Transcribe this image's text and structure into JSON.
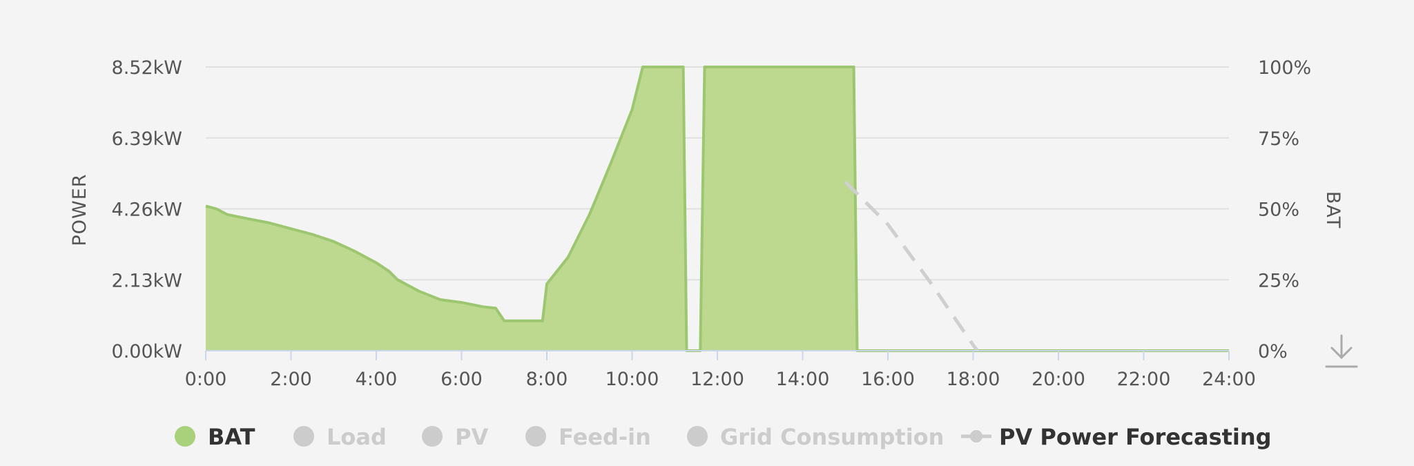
{
  "chart_data": {
    "type": "area",
    "x_ticks": [
      "0:00",
      "2:00",
      "4:00",
      "6:00",
      "8:00",
      "10:00",
      "12:00",
      "14:00",
      "16:00",
      "18:00",
      "20:00",
      "22:00",
      "24:00"
    ],
    "x_range_hours": [
      0,
      24
    ],
    "y_left": {
      "label": "POWER",
      "ticks": [
        "0.00kW",
        "2.13kW",
        "4.26kW",
        "6.39kW",
        "8.52kW"
      ],
      "range": [
        0,
        8.52
      ],
      "unit": "kW"
    },
    "y_right": {
      "label": "BAT",
      "ticks": [
        "0%",
        "25%",
        "50%",
        "75%",
        "100%"
      ],
      "range": [
        0,
        100
      ],
      "unit": "%"
    },
    "grid": true,
    "series": [
      {
        "name": "BAT",
        "axis": "right",
        "style": "area",
        "color": "#9cc66f",
        "fill": "#bcd98f",
        "visible": true,
        "points": [
          [
            0,
            51
          ],
          [
            0.25,
            50
          ],
          [
            0.5,
            48
          ],
          [
            1,
            46.5
          ],
          [
            1.5,
            45
          ],
          [
            2,
            43
          ],
          [
            2.5,
            41
          ],
          [
            3,
            38.5
          ],
          [
            3.5,
            35
          ],
          [
            4,
            31
          ],
          [
            4.3,
            28
          ],
          [
            4.5,
            25
          ],
          [
            5,
            21
          ],
          [
            5.5,
            18
          ],
          [
            6,
            17
          ],
          [
            6.5,
            15.5
          ],
          [
            6.8,
            15
          ],
          [
            7,
            10.5
          ],
          [
            7.9,
            10.5
          ],
          [
            8,
            23.5
          ],
          [
            8.5,
            33
          ],
          [
            9,
            48
          ],
          [
            9.5,
            66
          ],
          [
            10,
            85
          ],
          [
            10.25,
            100
          ],
          [
            11.2,
            100
          ],
          [
            11.28,
            0
          ],
          [
            11.6,
            0
          ],
          [
            11.7,
            100
          ],
          [
            15.2,
            100
          ],
          [
            15.28,
            0
          ],
          [
            24,
            0
          ]
        ]
      },
      {
        "name": "Load",
        "visible": false,
        "points": []
      },
      {
        "name": "PV",
        "visible": false,
        "points": []
      },
      {
        "name": "Feed-in",
        "visible": false,
        "points": []
      },
      {
        "name": "Grid Consumption",
        "visible": false,
        "points": []
      },
      {
        "name": "PV Power Forecasting",
        "axis": "right",
        "style": "dashed-line",
        "color": "#cfcfcf",
        "visible": true,
        "points": [
          [
            15,
            59.5
          ],
          [
            16,
            44.5
          ],
          [
            17,
            24
          ],
          [
            18,
            2
          ],
          [
            18.1,
            0
          ]
        ]
      }
    ],
    "legend": {
      "placement": "bottom",
      "items": [
        {
          "label": "BAT",
          "marker": "circle",
          "color": "#a9d17c",
          "active": true
        },
        {
          "label": "Load",
          "marker": "circle",
          "color": "#cccccc",
          "active": false
        },
        {
          "label": "PV",
          "marker": "circle",
          "color": "#cccccc",
          "active": false
        },
        {
          "label": "Feed-in",
          "marker": "circle",
          "color": "#cccccc",
          "active": false
        },
        {
          "label": "Grid Consumption",
          "marker": "circle",
          "color": "#cccccc",
          "active": false
        },
        {
          "label": "PV Power Forecasting",
          "marker": "dash-circle",
          "color": "#cccccc",
          "active": true
        }
      ]
    },
    "download_icon": "download-icon"
  }
}
